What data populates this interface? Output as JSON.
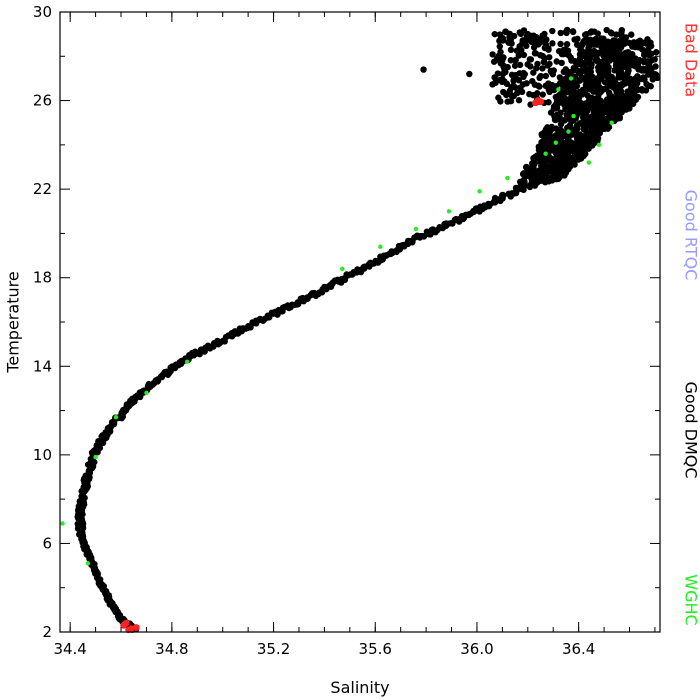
{
  "chart_data": {
    "type": "scatter",
    "title": "",
    "xlabel": "Salinity",
    "ylabel": "Temperature",
    "xlim": [
      34.36,
      36.72
    ],
    "ylim": [
      2,
      30
    ],
    "x_ticks": [
      34.4,
      34.8,
      35.2,
      35.6,
      36.0,
      36.4
    ],
    "x_tick_labels": [
      "34.4",
      "34.8",
      "35.2",
      "35.6",
      "36.0",
      "36.4"
    ],
    "x_minor_step": 0.1,
    "y_ticks": [
      2,
      6,
      10,
      14,
      18,
      22,
      26,
      30
    ],
    "y_tick_labels": [
      "2",
      "6",
      "10",
      "14",
      "18",
      "22",
      "26",
      "30"
    ],
    "y_minor_step": 2,
    "grid": false,
    "legend_position": "right side, vertical",
    "legend": [
      {
        "words": [
          "Bad",
          "Data"
        ],
        "color": "#ff3333"
      },
      {
        "words": [
          "Good",
          "RTQC"
        ],
        "color": "#9999ff"
      },
      {
        "words": [
          "Good",
          "DMQC"
        ],
        "color": "#000000"
      },
      {
        "words": [
          "WGHC"
        ],
        "color": "#22ee22"
      }
    ],
    "series": [
      {
        "name": "Good DMQC",
        "color": "#000000",
        "curve": [
          [
            34.66,
            2.0
          ],
          [
            34.6,
            2.6
          ],
          [
            34.56,
            3.3
          ],
          [
            34.52,
            4.2
          ],
          [
            34.49,
            5.0
          ],
          [
            34.46,
            5.8
          ],
          [
            34.44,
            6.5
          ],
          [
            34.44,
            7.3
          ],
          [
            34.45,
            8.2
          ],
          [
            34.47,
            9.2
          ],
          [
            34.5,
            10.2
          ],
          [
            34.56,
            11.3
          ],
          [
            34.64,
            12.4
          ],
          [
            34.73,
            13.3
          ],
          [
            34.85,
            14.3
          ],
          [
            35.0,
            15.2
          ],
          [
            35.15,
            16.1
          ],
          [
            35.3,
            16.9
          ],
          [
            35.45,
            17.8
          ],
          [
            35.6,
            18.7
          ],
          [
            35.75,
            19.7
          ],
          [
            35.92,
            20.6
          ],
          [
            36.08,
            21.5
          ],
          [
            36.22,
            22.3
          ],
          [
            36.34,
            23.4
          ],
          [
            36.45,
            24.6
          ],
          [
            36.55,
            25.5
          ]
        ],
        "cloud_x": [
          36.35,
          36.72
        ],
        "cloud_y": [
          22.3,
          28.8
        ],
        "upper_scatter_x": [
          36.06,
          36.62
        ],
        "upper_scatter_y": [
          25.8,
          29.2
        ],
        "outliers": [
          [
            35.79,
            27.4
          ],
          [
            35.97,
            27.2
          ],
          [
            36.43,
            29.0
          ],
          [
            36.07,
            29.0
          ]
        ]
      },
      {
        "name": "Bad Data",
        "color": "#ff2222",
        "points": [
          [
            34.63,
            2.1
          ],
          [
            34.65,
            2.0
          ],
          [
            34.66,
            2.2
          ],
          [
            34.67,
            2.05
          ],
          [
            34.68,
            2.0
          ],
          [
            34.62,
            2.4
          ],
          [
            34.64,
            2.15
          ],
          [
            34.69,
            2.05
          ],
          [
            34.61,
            2.3
          ],
          [
            34.66,
            2.05
          ],
          [
            36.23,
            25.9
          ],
          [
            36.24,
            26.0
          ],
          [
            36.25,
            25.95
          ]
        ]
      },
      {
        "name": "WGHC",
        "color": "#22ee22",
        "points": [
          [
            34.47,
            5.1
          ],
          [
            34.5,
            9.9
          ],
          [
            34.58,
            11.7
          ],
          [
            34.7,
            12.8
          ],
          [
            34.86,
            14.2
          ],
          [
            35.47,
            18.4
          ],
          [
            35.62,
            19.4
          ],
          [
            35.76,
            20.2
          ],
          [
            35.89,
            21.0
          ],
          [
            36.01,
            21.9
          ],
          [
            36.12,
            22.5
          ],
          [
            36.27,
            23.6
          ],
          [
            36.31,
            24.1
          ],
          [
            36.36,
            24.6
          ],
          [
            36.38,
            25.3
          ],
          [
            36.37,
            27.0
          ],
          [
            36.32,
            26.5
          ],
          [
            36.44,
            23.2
          ],
          [
            36.53,
            25.0
          ],
          [
            36.48,
            24.0
          ],
          [
            34.37,
            6.9
          ]
        ]
      }
    ]
  }
}
